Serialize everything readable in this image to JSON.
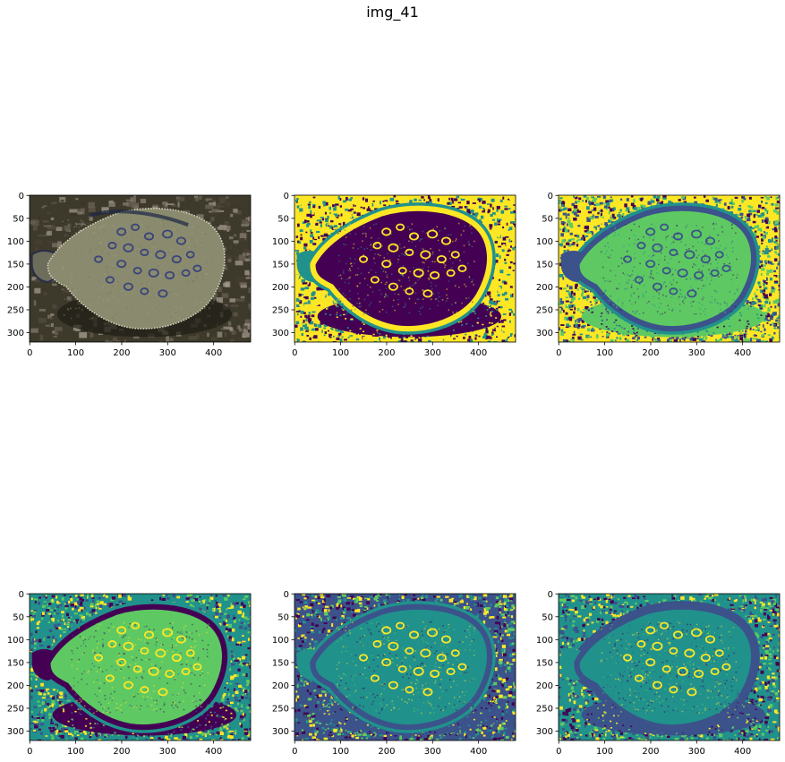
{
  "figure": {
    "title": "img_41"
  },
  "panels": [
    {
      "id": "p1",
      "style": "natural",
      "colormap": "photo"
    },
    {
      "id": "p2",
      "style": "segmentation",
      "clusters": 3
    },
    {
      "id": "p3",
      "style": "segmentation",
      "clusters": 4
    },
    {
      "id": "p4",
      "style": "segmentation",
      "clusters": 5
    },
    {
      "id": "p5",
      "style": "segmentation",
      "clusters": 6
    },
    {
      "id": "p6",
      "style": "segmentation",
      "clusters": 7
    }
  ],
  "axes": {
    "x_ticks": [
      "0",
      "100",
      "200",
      "300",
      "400"
    ],
    "y_ticks": [
      "0",
      "50",
      "100",
      "150",
      "200",
      "250",
      "300"
    ]
  },
  "colors": {
    "viridis_purple": "#440154",
    "viridis_blue": "#3b528b",
    "viridis_teal": "#21918c",
    "viridis_green": "#5ec962",
    "viridis_yellow": "#fde725",
    "photo_dark": "#3d3a2c",
    "photo_fish": "#8a8a6e",
    "photo_spot": "#39437a"
  }
}
